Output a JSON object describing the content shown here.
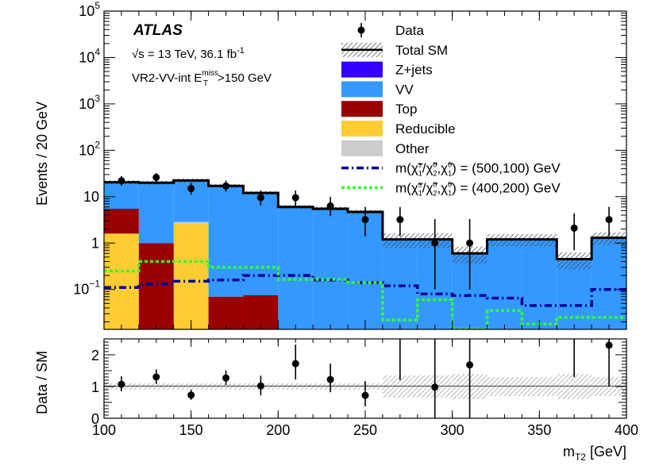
{
  "chart_data": {
    "type": "bar",
    "subtype": "stacked-histogram-with-ratio",
    "y_scale": "log",
    "experiment": "ATLAS",
    "energy_text": "√s = 13 TeV, 36.1 fb⁻¹",
    "energy_base": "√s = 13 TeV, 36.1 fb",
    "energy_exp": "-1",
    "region_main": "VR2-VV-int E",
    "region_sup": "miss",
    "region_sub": "T",
    "region_cut": ">150 GeV",
    "xlabel_main": "m",
    "xlabel_sub": "T2",
    "xlabel_unit": " [GeV]",
    "ylabel_top": "Events / 20 GeV",
    "ylabel_bottom": "Data / SM",
    "xlim": [
      100,
      400
    ],
    "ylim": [
      0.0138,
      100000
    ],
    "ratio_ylim": [
      0,
      2.5
    ],
    "bin_edges": [
      100,
      120,
      140,
      160,
      180,
      200,
      220,
      240,
      260,
      280,
      300,
      320,
      340,
      360,
      380,
      400
    ],
    "x_ticks": [
      {
        "v": 100,
        "t": "100"
      },
      {
        "v": 150,
        "t": "150"
      },
      {
        "v": 200,
        "t": "200"
      },
      {
        "v": 250,
        "t": "250"
      },
      {
        "v": 300,
        "t": "300"
      },
      {
        "v": 350,
        "t": "350"
      },
      {
        "v": 400,
        "t": "400"
      }
    ],
    "y_ticks": [
      {
        "v": 0.1,
        "base": "10",
        "exp": "−1"
      },
      {
        "v": 1,
        "base": "1",
        "exp": ""
      },
      {
        "v": 10,
        "base": "10",
        "exp": ""
      },
      {
        "v": 100,
        "base": "10",
        "exp": "2"
      },
      {
        "v": 1000,
        "base": "10",
        "exp": "3"
      },
      {
        "v": 10000,
        "base": "10",
        "exp": "4"
      },
      {
        "v": 100000,
        "base": "10",
        "exp": "5"
      }
    ],
    "ratio_ticks": [
      {
        "v": 0,
        "t": "0"
      },
      {
        "v": 1,
        "t": "1"
      },
      {
        "v": 2,
        "t": "2"
      }
    ],
    "stack_series": [
      {
        "name": "Reducible",
        "color": "#ffcc33",
        "values": [
          1.6,
          0,
          2.6,
          0,
          0,
          0,
          0,
          0,
          0,
          0,
          0,
          0,
          0,
          0,
          0
        ]
      },
      {
        "name": "Other",
        "color": "#cccccc",
        "values": [
          0,
          0,
          0.25,
          0,
          0,
          0,
          0,
          0,
          0,
          0,
          0,
          0,
          0,
          0,
          0
        ]
      },
      {
        "name": "Top",
        "color": "#990000",
        "values": [
          3.9,
          1.0,
          0,
          0.07,
          0.075,
          0,
          0,
          0,
          0,
          0,
          0,
          0,
          0,
          0,
          0
        ]
      },
      {
        "name": "VV",
        "color": "#3399ff",
        "values": [
          15,
          19,
          19.5,
          17,
          11.9,
          6.0,
          5.5,
          4.7,
          1.2,
          1.2,
          0.6,
          1.2,
          1.2,
          0.45,
          1.3
        ]
      },
      {
        "name": "Z+jets",
        "color": "#3300ff",
        "values": [
          0,
          0,
          0,
          0,
          0,
          0,
          0,
          0,
          0,
          0,
          0,
          0,
          0,
          0,
          0
        ]
      }
    ],
    "total_sm": [
      20.5,
      20.0,
      22.4,
      17.1,
      12.0,
      6.0,
      5.5,
      4.7,
      1.2,
      1.2,
      0.6,
      1.2,
      1.2,
      0.45,
      1.3
    ],
    "total_sm_unc_frac": [
      0.1,
      0.1,
      0.1,
      0.1,
      0.1,
      0.1,
      0.1,
      0.1,
      0.35,
      0.35,
      0.4,
      0.3,
      0.3,
      0.4,
      0.3
    ],
    "data_x": [
      110,
      130,
      150,
      170,
      190,
      210,
      230,
      250,
      270,
      290,
      310,
      330,
      350,
      370,
      390
    ],
    "data": [
      22,
      26,
      15,
      17,
      9.5,
      9.5,
      6.3,
      3.2,
      3.2,
      1.0,
      1.0,
      0,
      0,
      2.1,
      3.2
    ],
    "data_err_low": [
      4.7,
      5.1,
      3.9,
      4.1,
      3.1,
      3.1,
      2.5,
      1.8,
      1.8,
      0.9,
      0.9,
      0,
      0,
      1.4,
      1.8
    ],
    "data_err_high": [
      5.7,
      6.1,
      4.9,
      5.1,
      4.1,
      4.1,
      3.6,
      2.8,
      2.8,
      2.3,
      2.3,
      0,
      0,
      2.3,
      2.8
    ],
    "ratio": [
      1.07,
      1.3,
      0.73,
      1.27,
      1.02,
      1.72,
      1.22,
      0.72,
      null,
      0.98,
      1.68,
      null,
      null,
      null,
      2.3
    ],
    "ratio_err_low": [
      0.22,
      0.22,
      0.15,
      0.22,
      0.3,
      0.5,
      0.4,
      0.35,
      null,
      0.98,
      1.68,
      null,
      null,
      null,
      1.3
    ],
    "ratio_err_high": [
      0.25,
      0.24,
      0.17,
      0.24,
      0.32,
      0.6,
      0.5,
      0.45,
      null,
      2.0,
      2.5,
      null,
      null,
      null,
      1.7
    ],
    "ratio_arrows": [
      {
        "x": 270,
        "from": 1.2
      },
      {
        "x": 370,
        "from": 1.3
      }
    ],
    "ratio_band_frac": [
      0.1,
      0.1,
      0.1,
      0.1,
      0.1,
      0.1,
      0.1,
      0.1,
      0.35,
      0.35,
      0.4,
      0.3,
      0.3,
      0.4,
      0.3
    ],
    "signal_series": [
      {
        "name": "m(χ̃±₁/χ̃⁰₂,χ̃⁰₁) = (500,100) GeV",
        "color": "#000099",
        "style": "dashdot",
        "values": [
          0.11,
          0.13,
          0.15,
          0.16,
          0.2,
          0.2,
          0.16,
          0.14,
          0.12,
          0.08,
          0.074,
          0.065,
          0.045,
          0.045,
          0.1
        ]
      },
      {
        "name": "m(χ̃±₁/χ̃⁰₂,χ̃⁰₁) = (400,200) GeV",
        "color": "#33ff33",
        "style": "dotted",
        "values": [
          0.25,
          0.4,
          0.4,
          0.3,
          0.3,
          0.165,
          0.165,
          0.14,
          0.022,
          0.06,
          0.012,
          0.035,
          0.018,
          0.025,
          0.025
        ]
      }
    ],
    "legend": [
      {
        "label": "Data",
        "kind": "marker"
      },
      {
        "label": "Total SM",
        "kind": "hatch"
      },
      {
        "label": "Z+jets",
        "kind": "fill",
        "color": "#3300ff"
      },
      {
        "label": "VV",
        "kind": "fill",
        "color": "#3399ff"
      },
      {
        "label": "Top",
        "kind": "fill",
        "color": "#990000"
      },
      {
        "label": "Reducible",
        "kind": "fill",
        "color": "#ffcc33"
      },
      {
        "label": "Other",
        "kind": "fill",
        "color": "#cccccc"
      },
      {
        "label": "m(χ̃±₁/χ̃⁰₂,χ̃⁰₁) = (500,100) GeV",
        "kind": "dashdot",
        "color": "#000099",
        "parts": [
          "m(",
          "χ̃",
          "±",
          "1",
          "/",
          "χ̃",
          "0",
          "2",
          ",",
          "χ̃",
          "0",
          "1",
          ") = (500,100) GeV"
        ]
      },
      {
        "label": "m(χ̃±₁/χ̃⁰₂,χ̃⁰₁) = (400,200) GeV",
        "kind": "dotted",
        "color": "#33ff33",
        "parts": [
          "m(",
          "χ̃",
          "±",
          "1",
          "/",
          "χ̃",
          "0",
          "2",
          ",",
          "χ̃",
          "0",
          "1",
          ") = (400,200) GeV"
        ]
      }
    ],
    "legend_position": "top-right"
  }
}
